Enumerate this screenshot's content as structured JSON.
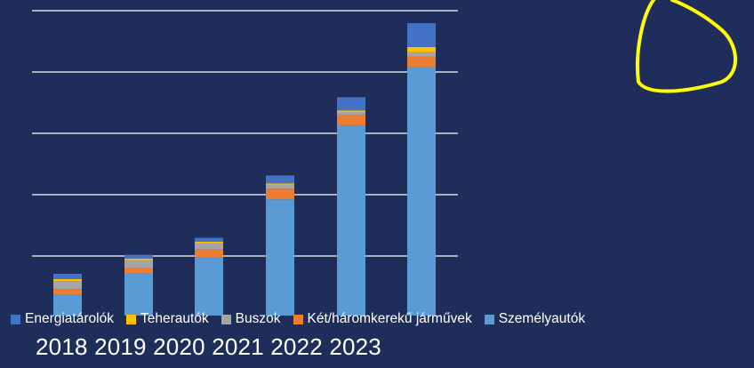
{
  "chart_data": {
    "type": "bar",
    "stacked": true,
    "categories": [
      "2018",
      "2019",
      "2020",
      "2021",
      "2022",
      "2023"
    ],
    "series": [
      {
        "name": "Személyautók",
        "color": "#5b9bd5",
        "values": [
          0.4,
          0.8,
          1.1,
          2.2,
          3.6,
          4.7
        ]
      },
      {
        "name": "Két/háromkerekű járművek",
        "color": "#ed7d31",
        "values": [
          0.1,
          0.1,
          0.15,
          0.2,
          0.2,
          0.2
        ]
      },
      {
        "name": "Buszok",
        "color": "#a5a5a5",
        "values": [
          0.15,
          0.15,
          0.12,
          0.08,
          0.05,
          0.08
        ]
      },
      {
        "name": "Teherautók",
        "color": "#ffc000",
        "values": [
          0.04,
          0.03,
          0.03,
          0.02,
          0.03,
          0.1
        ]
      },
      {
        "name": "Energiatárolók",
        "color": "#4472c4",
        "values": [
          0.1,
          0.07,
          0.07,
          0.15,
          0.25,
          0.45
        ]
      }
    ],
    "ylim": [
      0,
      5.8
    ],
    "grid": true,
    "legend": "bottom"
  },
  "annotation": {
    "shape": "circle",
    "color": "#ffff00"
  },
  "year_caption": "2018 2019 2020 2021 2022 2023"
}
